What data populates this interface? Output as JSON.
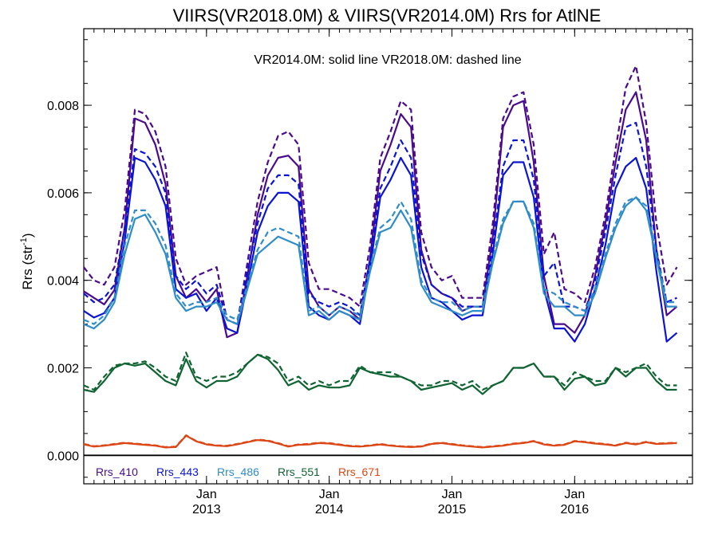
{
  "chart_data": {
    "type": "line",
    "title": "VIIRS(VR2018.0M) & VIIRS(VR2014.0M)  Rrs for AtlNE",
    "subtitle": "VR2014.0M: solid line   VR2018.0M: dashed line",
    "ylabel_main": "Rrs (str",
    "ylabel_sup": "-1",
    "ylabel_close": ")",
    "xlabel": "",
    "ylim": [
      -0.00065,
      0.00975
    ],
    "xlim": [
      2012.0,
      2016.96
    ],
    "yticks": [
      {
        "value": 0.0,
        "label": "0.000"
      },
      {
        "value": 0.002,
        "label": "0.002"
      },
      {
        "value": 0.004,
        "label": "0.004"
      },
      {
        "value": 0.006,
        "label": "0.006"
      },
      {
        "value": 0.008,
        "label": "0.008"
      }
    ],
    "yminor_step": 0.0005,
    "xticks": [
      {
        "value": 2013.0,
        "month": "Jan",
        "year": "2013"
      },
      {
        "value": 2014.0,
        "month": "Jan",
        "year": "2014"
      },
      {
        "value": 2015.0,
        "month": "Jan",
        "year": "2015"
      },
      {
        "value": 2016.0,
        "month": "Jan",
        "year": "2016"
      }
    ],
    "grid": false,
    "zero_line": true,
    "legend_position": "bottom-left",
    "x_start": 2012.0,
    "x_step": 0.08333,
    "series": [
      {
        "name": "Rrs_410",
        "color": "#4b0a8c",
        "style": "solid",
        "values": [
          0.00375,
          0.0036,
          0.00345,
          0.00378,
          0.0052,
          0.0077,
          0.0076,
          0.0071,
          0.0062,
          0.0041,
          0.0036,
          0.0038,
          0.0035,
          0.0038,
          0.0027,
          0.0028,
          0.0041,
          0.0055,
          0.0064,
          0.0068,
          0.00685,
          0.0066,
          0.0038,
          0.0034,
          0.0032,
          0.0034,
          0.0033,
          0.0031,
          0.0045,
          0.0065,
          0.0071,
          0.0078,
          0.0075,
          0.0047,
          0.0039,
          0.0037,
          0.0036,
          0.0033,
          0.0034,
          0.0034,
          0.005,
          0.0075,
          0.008,
          0.0081,
          0.0067,
          0.0041,
          0.003,
          0.003,
          0.0028,
          0.0032,
          0.0041,
          0.0053,
          0.0067,
          0.0079,
          0.0083,
          0.0072,
          0.0047,
          0.0032,
          0.0034
        ]
      },
      {
        "name": "Rrs_410",
        "color": "#4b0a8c",
        "style": "dashed",
        "values": [
          0.0043,
          0.004,
          0.0039,
          0.0043,
          0.0056,
          0.0079,
          0.0078,
          0.0074,
          0.0066,
          0.0045,
          0.0039,
          0.0041,
          0.0042,
          0.0043,
          0.0031,
          0.003,
          0.0044,
          0.0058,
          0.0067,
          0.0073,
          0.0074,
          0.0071,
          0.0044,
          0.0038,
          0.0038,
          0.0037,
          0.0036,
          0.0034,
          0.0048,
          0.0068,
          0.0074,
          0.0081,
          0.0079,
          0.0051,
          0.0043,
          0.004,
          0.0041,
          0.0036,
          0.0036,
          0.0036,
          0.0053,
          0.0077,
          0.0082,
          0.0083,
          0.0071,
          0.0046,
          0.0051,
          0.0038,
          0.0037,
          0.0035,
          0.0043,
          0.0055,
          0.007,
          0.0084,
          0.0089,
          0.0076,
          0.0053,
          0.0039,
          0.0043
        ]
      },
      {
        "name": "Rrs_443",
        "color": "#0a14d2",
        "style": "solid",
        "values": [
          0.0033,
          0.00315,
          0.00325,
          0.0036,
          0.0049,
          0.0068,
          0.0067,
          0.0063,
          0.0057,
          0.0038,
          0.0036,
          0.0037,
          0.0033,
          0.0036,
          0.0029,
          0.0028,
          0.0039,
          0.0051,
          0.0057,
          0.006,
          0.006,
          0.0058,
          0.0034,
          0.0032,
          0.0031,
          0.0033,
          0.0032,
          0.003,
          0.0043,
          0.0059,
          0.0063,
          0.0068,
          0.0064,
          0.0043,
          0.0036,
          0.0035,
          0.0033,
          0.0031,
          0.0032,
          0.0032,
          0.0046,
          0.0064,
          0.0067,
          0.0067,
          0.0059,
          0.0038,
          0.0029,
          0.0029,
          0.0026,
          0.003,
          0.0038,
          0.0048,
          0.0061,
          0.0066,
          0.0068,
          0.0061,
          0.0042,
          0.0026,
          0.0028
        ]
      },
      {
        "name": "Rrs_443",
        "color": "#0a14d2",
        "style": "dashed",
        "values": [
          0.0037,
          0.0035,
          0.0036,
          0.0039,
          0.0052,
          0.007,
          0.0069,
          0.0066,
          0.006,
          0.0041,
          0.0038,
          0.004,
          0.0037,
          0.0039,
          0.0031,
          0.003,
          0.0042,
          0.0053,
          0.0061,
          0.0064,
          0.0064,
          0.0062,
          0.0037,
          0.0035,
          0.0034,
          0.0035,
          0.0034,
          0.0032,
          0.0045,
          0.0061,
          0.0066,
          0.0072,
          0.0068,
          0.0046,
          0.0039,
          0.0037,
          0.0036,
          0.0034,
          0.0034,
          0.0034,
          0.0048,
          0.0066,
          0.0072,
          0.0072,
          0.0063,
          0.0041,
          0.0044,
          0.0034,
          0.0034,
          0.0033,
          0.004,
          0.0051,
          0.0064,
          0.0075,
          0.0076,
          0.0066,
          0.0047,
          0.0035,
          0.0036
        ]
      },
      {
        "name": "Rrs_486",
        "color": "#2e8cc8",
        "style": "solid",
        "values": [
          0.003,
          0.0029,
          0.0031,
          0.0035,
          0.0046,
          0.0054,
          0.0055,
          0.0051,
          0.0046,
          0.0036,
          0.0033,
          0.0034,
          0.0034,
          0.0035,
          0.0031,
          0.003,
          0.0038,
          0.0046,
          0.0048,
          0.005,
          0.0049,
          0.0048,
          0.0032,
          0.0033,
          0.0031,
          0.0033,
          0.0032,
          0.0031,
          0.0042,
          0.0051,
          0.0052,
          0.0056,
          0.0052,
          0.0039,
          0.0035,
          0.0034,
          0.0033,
          0.0032,
          0.0033,
          0.0033,
          0.0044,
          0.0053,
          0.0058,
          0.0058,
          0.0052,
          0.0037,
          0.0034,
          0.0034,
          0.0032,
          0.0032,
          0.0037,
          0.0045,
          0.0052,
          0.0057,
          0.0059,
          0.0056,
          0.0045,
          0.0034,
          0.0034
        ]
      },
      {
        "name": "Rrs_486",
        "color": "#2e8cc8",
        "style": "dashed",
        "values": [
          0.0031,
          0.003,
          0.0032,
          0.0036,
          0.0048,
          0.0056,
          0.0056,
          0.0053,
          0.0048,
          0.0037,
          0.0034,
          0.0035,
          0.0035,
          0.0036,
          0.0032,
          0.0031,
          0.0039,
          0.0047,
          0.0051,
          0.0052,
          0.0051,
          0.005,
          0.0033,
          0.0034,
          0.0032,
          0.0034,
          0.0033,
          0.0032,
          0.0043,
          0.0052,
          0.0054,
          0.0058,
          0.0054,
          0.004,
          0.0036,
          0.0035,
          0.0035,
          0.0033,
          0.0034,
          0.0034,
          0.0045,
          0.0054,
          0.0058,
          0.0058,
          0.0053,
          0.0038,
          0.0037,
          0.0035,
          0.0034,
          0.0033,
          0.0038,
          0.0046,
          0.0053,
          0.0058,
          0.0059,
          0.0057,
          0.0046,
          0.0035,
          0.0035
        ]
      },
      {
        "name": "Rrs_551",
        "color": "#0f6432",
        "style": "solid",
        "values": [
          0.0015,
          0.00145,
          0.0017,
          0.002,
          0.0021,
          0.00205,
          0.0021,
          0.0019,
          0.0017,
          0.0016,
          0.0022,
          0.0017,
          0.00155,
          0.0017,
          0.0017,
          0.0018,
          0.0021,
          0.0023,
          0.0022,
          0.00195,
          0.0016,
          0.0017,
          0.0015,
          0.0016,
          0.00155,
          0.00155,
          0.0016,
          0.002,
          0.0019,
          0.00185,
          0.0018,
          0.0018,
          0.0017,
          0.0015,
          0.00155,
          0.0016,
          0.00165,
          0.0015,
          0.0016,
          0.0014,
          0.0016,
          0.0017,
          0.002,
          0.002,
          0.0021,
          0.0018,
          0.0018,
          0.0015,
          0.00175,
          0.0018,
          0.0016,
          0.00165,
          0.002,
          0.0018,
          0.002,
          0.002,
          0.0017,
          0.0015,
          0.0015
        ]
      },
      {
        "name": "Rrs_551",
        "color": "#0f6432",
        "style": "dashed",
        "values": [
          0.0016,
          0.0015,
          0.0018,
          0.00205,
          0.0021,
          0.0021,
          0.00215,
          0.002,
          0.0018,
          0.0017,
          0.00235,
          0.0018,
          0.0017,
          0.0018,
          0.0018,
          0.0019,
          0.0021,
          0.0023,
          0.00225,
          0.0021,
          0.0017,
          0.0018,
          0.0016,
          0.0017,
          0.0016,
          0.0017,
          0.0017,
          0.00205,
          0.0019,
          0.0019,
          0.0019,
          0.0018,
          0.0017,
          0.0016,
          0.0016,
          0.0017,
          0.0017,
          0.0016,
          0.0017,
          0.0015,
          0.0016,
          0.0017,
          0.002,
          0.002,
          0.0021,
          0.0018,
          0.0018,
          0.0016,
          0.0019,
          0.0018,
          0.0017,
          0.0017,
          0.002,
          0.0019,
          0.002,
          0.0021,
          0.0018,
          0.0016,
          0.0016
        ]
      },
      {
        "name": "Rrs_671",
        "color": "#dc4614",
        "style": "solid",
        "values": [
          0.00025,
          0.0002,
          0.00022,
          0.00025,
          0.00028,
          0.00026,
          0.00024,
          0.00022,
          0.00018,
          0.00019,
          0.00045,
          0.00032,
          0.00025,
          0.00022,
          0.00021,
          0.00025,
          0.0003,
          0.00035,
          0.00033,
          0.00027,
          0.0002,
          0.00024,
          0.00025,
          0.00028,
          0.00027,
          0.00024,
          0.00021,
          0.0002,
          0.00022,
          0.00025,
          0.00022,
          0.0002,
          0.00019,
          0.0002,
          0.00026,
          0.00028,
          0.00025,
          0.00022,
          0.0002,
          0.00018,
          0.0002,
          0.00022,
          0.00026,
          0.00028,
          0.00032,
          0.00025,
          0.00022,
          0.00024,
          0.00032,
          0.0003,
          0.00027,
          0.00025,
          0.00022,
          0.00028,
          0.00025,
          0.0003,
          0.00026,
          0.00027,
          0.00028
        ]
      },
      {
        "name": "Rrs_671",
        "color": "#dc4614",
        "style": "dashed",
        "values": [
          0.00026,
          0.00021,
          0.00023,
          0.00026,
          0.00029,
          0.00027,
          0.00025,
          0.00023,
          0.00019,
          0.0002,
          0.00046,
          0.00033,
          0.00026,
          0.00023,
          0.00022,
          0.00026,
          0.00031,
          0.00036,
          0.00034,
          0.00028,
          0.00021,
          0.00025,
          0.00026,
          0.00029,
          0.00028,
          0.00025,
          0.00022,
          0.00021,
          0.00023,
          0.00026,
          0.00023,
          0.00021,
          0.0002,
          0.00021,
          0.00027,
          0.00029,
          0.00026,
          0.00023,
          0.00021,
          0.00019,
          0.00021,
          0.00023,
          0.00027,
          0.00029,
          0.00033,
          0.00026,
          0.00023,
          0.00025,
          0.00033,
          0.00031,
          0.00028,
          0.00026,
          0.00023,
          0.00029,
          0.00026,
          0.00031,
          0.00027,
          0.00028,
          0.00029
        ]
      }
    ],
    "legend": [
      {
        "label": "Rrs_410",
        "color": "#4b0a8c"
      },
      {
        "label": "Rrs_443",
        "color": "#0a14d2"
      },
      {
        "label": "Rrs_486",
        "color": "#2e8cc8"
      },
      {
        "label": "Rrs_551",
        "color": "#0f6432"
      },
      {
        "label": "Rrs_671",
        "color": "#dc4614"
      }
    ]
  }
}
